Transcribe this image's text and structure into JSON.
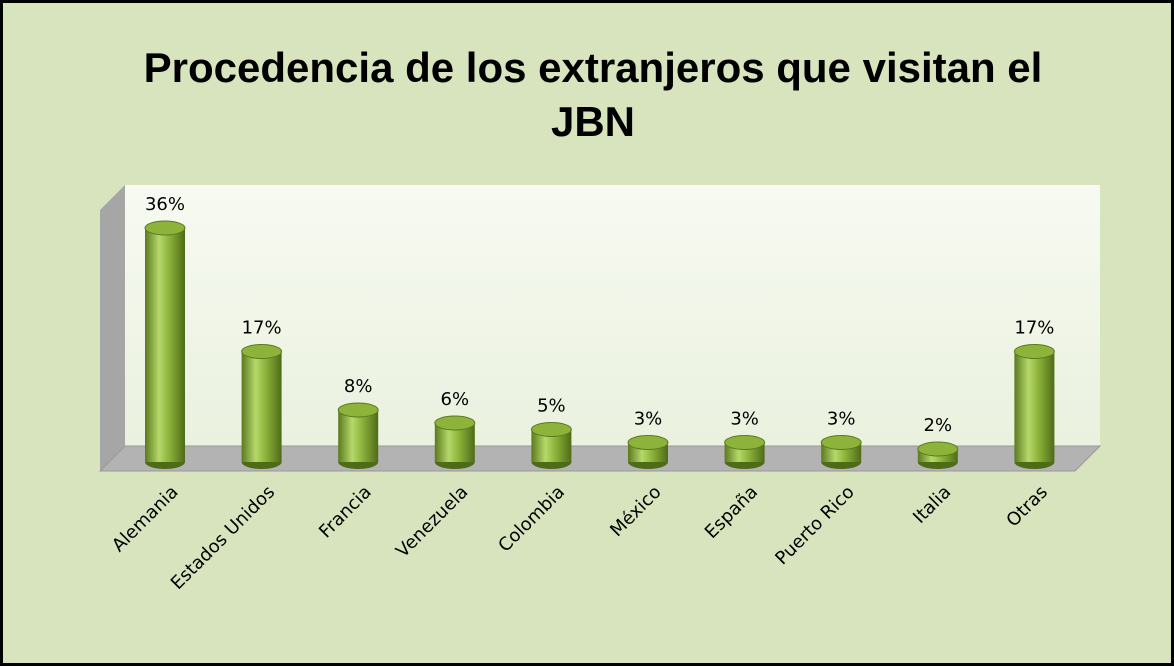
{
  "chart_data": {
    "type": "bar",
    "title": "Procedencia de los extranjeros que visitan el JBN",
    "categories": [
      "Alemania",
      "Estados Unidos",
      "Francia",
      "Venezuela",
      "Colombia",
      "México",
      "España",
      "Puerto Rico",
      "Italia",
      "Otras"
    ],
    "values": [
      36,
      17,
      8,
      6,
      5,
      3,
      3,
      3,
      2,
      17
    ],
    "value_labels": [
      "36%",
      "17%",
      "8%",
      "6%",
      "5%",
      "3%",
      "3%",
      "3%",
      "2%",
      "17%"
    ],
    "color": "#8db33a"
  }
}
